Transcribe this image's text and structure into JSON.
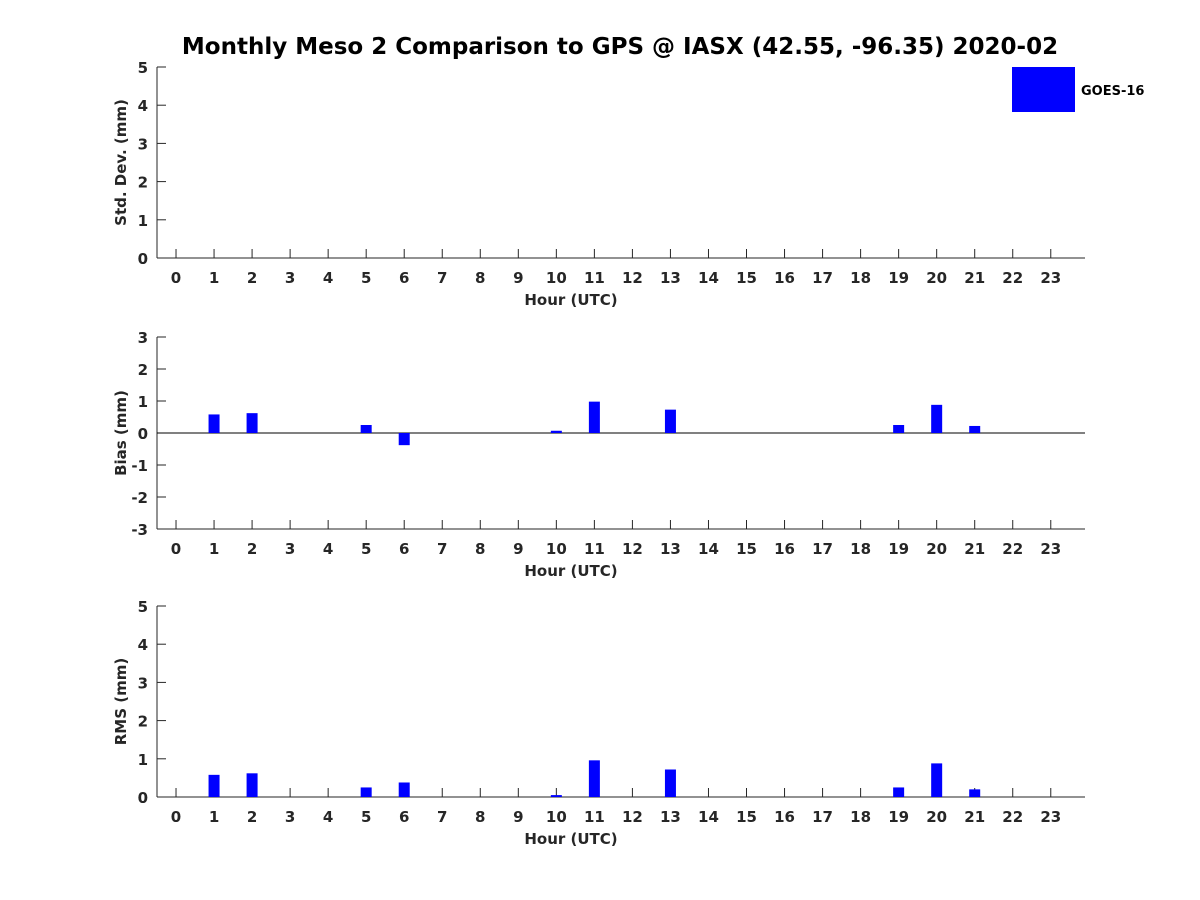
{
  "figure": {
    "title": "Monthly Meso 2 Comparison to GPS @ IASX (42.55, -96.35) 2020-02",
    "legend": {
      "label": "GOES-16",
      "placement": "top-right"
    }
  },
  "colors": {
    "bar": "#0000ff",
    "axis": "#262626",
    "title": "#000000"
  },
  "chart_data": [
    {
      "type": "bar",
      "xlabel": "Hour (UTC)",
      "ylabel": "Std. Dev. (mm)",
      "x": [
        0,
        1,
        2,
        3,
        4,
        5,
        6,
        7,
        8,
        9,
        10,
        11,
        12,
        13,
        14,
        15,
        16,
        17,
        18,
        19,
        20,
        21,
        22,
        23
      ],
      "xlim": [
        -0.5,
        23.9
      ],
      "ylim": [
        0,
        5
      ],
      "yticks": [
        0,
        1,
        2,
        3,
        4,
        5
      ],
      "zero_line": false,
      "series": [
        {
          "name": "GOES-16",
          "values": [
            null,
            null,
            null,
            null,
            null,
            null,
            null,
            null,
            null,
            null,
            null,
            null,
            null,
            null,
            null,
            null,
            null,
            null,
            null,
            null,
            null,
            null,
            null,
            null
          ]
        }
      ]
    },
    {
      "type": "bar",
      "xlabel": "Hour (UTC)",
      "ylabel": "Bias (mm)",
      "x": [
        0,
        1,
        2,
        3,
        4,
        5,
        6,
        7,
        8,
        9,
        10,
        11,
        12,
        13,
        14,
        15,
        16,
        17,
        18,
        19,
        20,
        21,
        22,
        23
      ],
      "xlim": [
        -0.5,
        23.9
      ],
      "ylim": [
        -3,
        3
      ],
      "yticks": [
        -3,
        -2,
        -1,
        0,
        1,
        2,
        3
      ],
      "zero_line": true,
      "series": [
        {
          "name": "GOES-16",
          "values": [
            null,
            0.58,
            0.62,
            null,
            null,
            0.25,
            -0.38,
            null,
            null,
            null,
            0.07,
            0.98,
            null,
            0.73,
            null,
            null,
            null,
            null,
            null,
            0.25,
            0.88,
            0.22,
            null,
            null
          ]
        }
      ]
    },
    {
      "type": "bar",
      "xlabel": "Hour (UTC)",
      "ylabel": "RMS (mm)",
      "x": [
        0,
        1,
        2,
        3,
        4,
        5,
        6,
        7,
        8,
        9,
        10,
        11,
        12,
        13,
        14,
        15,
        16,
        17,
        18,
        19,
        20,
        21,
        22,
        23
      ],
      "xlim": [
        -0.5,
        23.9
      ],
      "ylim": [
        0,
        5
      ],
      "yticks": [
        0,
        1,
        2,
        3,
        4,
        5
      ],
      "zero_line": false,
      "series": [
        {
          "name": "GOES-16",
          "values": [
            null,
            0.58,
            0.62,
            null,
            null,
            0.25,
            0.38,
            null,
            null,
            null,
            0.05,
            0.96,
            null,
            0.72,
            null,
            null,
            null,
            null,
            null,
            0.25,
            0.88,
            0.2,
            null,
            null
          ]
        }
      ]
    }
  ]
}
